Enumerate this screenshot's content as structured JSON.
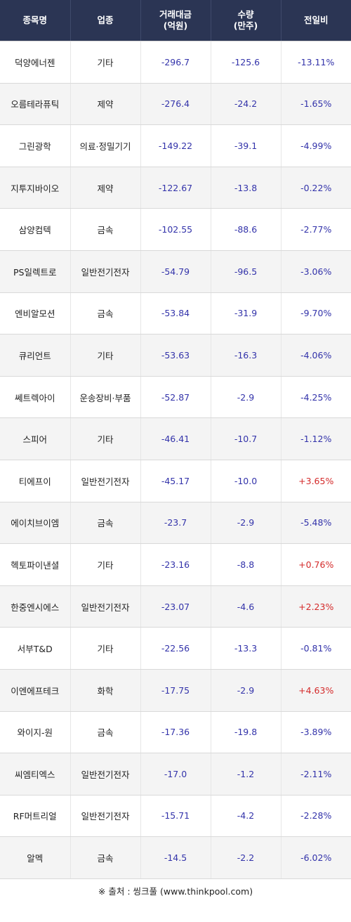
{
  "table": {
    "headers": [
      {
        "line1": "종목명",
        "line2": ""
      },
      {
        "line1": "업종",
        "line2": ""
      },
      {
        "line1": "거래대금",
        "line2": "(억원)"
      },
      {
        "line1": "수량",
        "line2": "(만주)"
      },
      {
        "line1": "전일비",
        "line2": ""
      }
    ],
    "rows": [
      {
        "name": "덕양에너젠",
        "sector": "기타",
        "amount": "-296.7",
        "volume": "-125.6",
        "change": "-13.11%",
        "direction": "down"
      },
      {
        "name": "오름테라퓨틱",
        "sector": "제약",
        "amount": "-276.4",
        "volume": "-24.2",
        "change": "-1.65%",
        "direction": "down"
      },
      {
        "name": "그린광학",
        "sector": "의료·정밀기기",
        "amount": "-149.22",
        "volume": "-39.1",
        "change": "-4.99%",
        "direction": "down"
      },
      {
        "name": "지투지바이오",
        "sector": "제약",
        "amount": "-122.67",
        "volume": "-13.8",
        "change": "-0.22%",
        "direction": "down"
      },
      {
        "name": "삼양컴텍",
        "sector": "금속",
        "amount": "-102.55",
        "volume": "-88.6",
        "change": "-2.77%",
        "direction": "down"
      },
      {
        "name": "PS일렉트로",
        "sector": "일반전기전자",
        "amount": "-54.79",
        "volume": "-96.5",
        "change": "-3.06%",
        "direction": "down"
      },
      {
        "name": "엔비알모션",
        "sector": "금속",
        "amount": "-53.84",
        "volume": "-31.9",
        "change": "-9.70%",
        "direction": "down"
      },
      {
        "name": "큐리언트",
        "sector": "기타",
        "amount": "-53.63",
        "volume": "-16.3",
        "change": "-4.06%",
        "direction": "down"
      },
      {
        "name": "쎄트렉아이",
        "sector": "운송장비·부품",
        "amount": "-52.87",
        "volume": "-2.9",
        "change": "-4.25%",
        "direction": "down"
      },
      {
        "name": "스피어",
        "sector": "기타",
        "amount": "-46.41",
        "volume": "-10.7",
        "change": "-1.12%",
        "direction": "down"
      },
      {
        "name": "티에프이",
        "sector": "일반전기전자",
        "amount": "-45.17",
        "volume": "-10.0",
        "change": "+3.65%",
        "direction": "up"
      },
      {
        "name": "에이치브이엠",
        "sector": "금속",
        "amount": "-23.7",
        "volume": "-2.9",
        "change": "-5.48%",
        "direction": "down"
      },
      {
        "name": "헥토파이낸셜",
        "sector": "기타",
        "amount": "-23.16",
        "volume": "-8.8",
        "change": "+0.76%",
        "direction": "up"
      },
      {
        "name": "한중엔시에스",
        "sector": "일반전기전자",
        "amount": "-23.07",
        "volume": "-4.6",
        "change": "+2.23%",
        "direction": "up"
      },
      {
        "name": "서부T&D",
        "sector": "기타",
        "amount": "-22.56",
        "volume": "-13.3",
        "change": "-0.81%",
        "direction": "down"
      },
      {
        "name": "이엔에프테크",
        "sector": "화학",
        "amount": "-17.75",
        "volume": "-2.9",
        "change": "+4.63%",
        "direction": "up"
      },
      {
        "name": "와이지-원",
        "sector": "금속",
        "amount": "-17.36",
        "volume": "-19.8",
        "change": "-3.89%",
        "direction": "down"
      },
      {
        "name": "씨엠티엑스",
        "sector": "일반전기전자",
        "amount": "-17.0",
        "volume": "-1.2",
        "change": "-2.11%",
        "direction": "down"
      },
      {
        "name": "RF머트리얼",
        "sector": "일반전기전자",
        "amount": "-15.71",
        "volume": "-4.2",
        "change": "-2.28%",
        "direction": "down"
      },
      {
        "name": "알멕",
        "sector": "금속",
        "amount": "-14.5",
        "volume": "-2.2",
        "change": "-6.02%",
        "direction": "down"
      }
    ]
  },
  "footer": {
    "mark": "※",
    "source_text": "출처 : 씽크풀 (www.thinkpool.com)"
  },
  "colors": {
    "header_bg": "#2b3554",
    "down": "#3333aa",
    "up": "#d42a2a"
  }
}
